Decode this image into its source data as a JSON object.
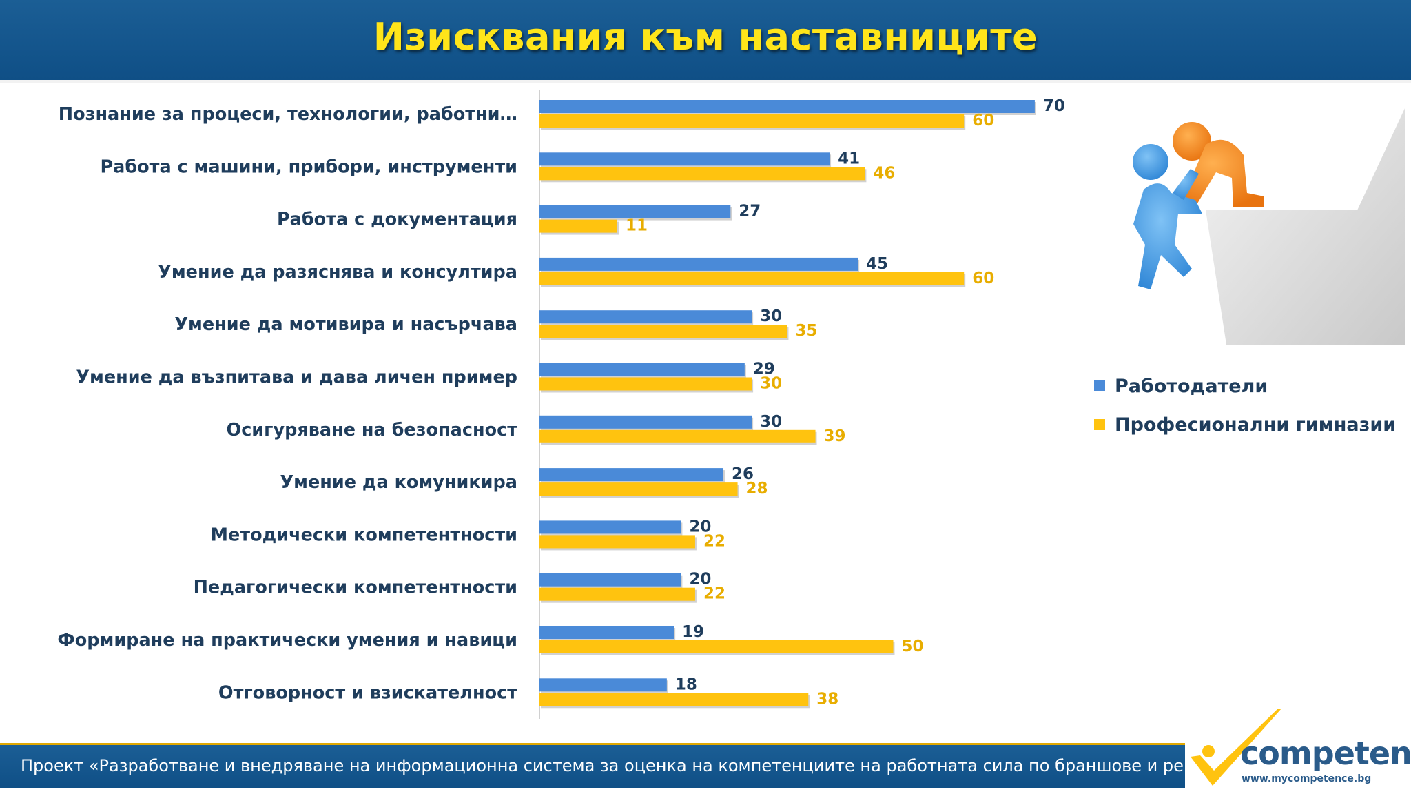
{
  "title": "Изисквания към наставниците",
  "chart_data": {
    "type": "bar",
    "orientation": "horizontal",
    "categories": [
      "Познание за процеси, технологии, работни…",
      "Работа с машини, прибори, инструменти",
      "Работа с документация",
      "Умение да разяснява и консултира",
      "Умение да мотивира и насърчава",
      "Умение да възпитава и дава личен пример",
      "Осигуряване на безопасност",
      "Умение да комуникира",
      "Методически компетентности",
      "Педагогически компетентности",
      "Формиране на практически умения и навици",
      "Отговорност и взискателност"
    ],
    "series": [
      {
        "name": "Работодатели",
        "color": "#4a8ad8",
        "label_color": "#1f3d5c",
        "values": [
          70,
          41,
          27,
          45,
          30,
          29,
          30,
          26,
          20,
          20,
          19,
          18
        ]
      },
      {
        "name": "Професионални гимназии",
        "color": "#ffc30f",
        "label_color": "#e8ad00",
        "values": [
          60,
          46,
          11,
          60,
          35,
          30,
          39,
          28,
          22,
          22,
          50,
          38
        ]
      }
    ],
    "xlim": [
      0,
      70
    ],
    "grid": false,
    "legend_position": "right"
  },
  "footer": {
    "text": "Проект «Разработване и внедряване на информационна система за оценка на компетенциите на работната сила по браншове и региони»"
  },
  "logo": {
    "word": "competence",
    "url": "www.mycompetence.bg"
  },
  "colors": {
    "header_blue": "#1b5e95",
    "title_yellow": "#ffe51a",
    "category_text": "#1f3d5c"
  }
}
